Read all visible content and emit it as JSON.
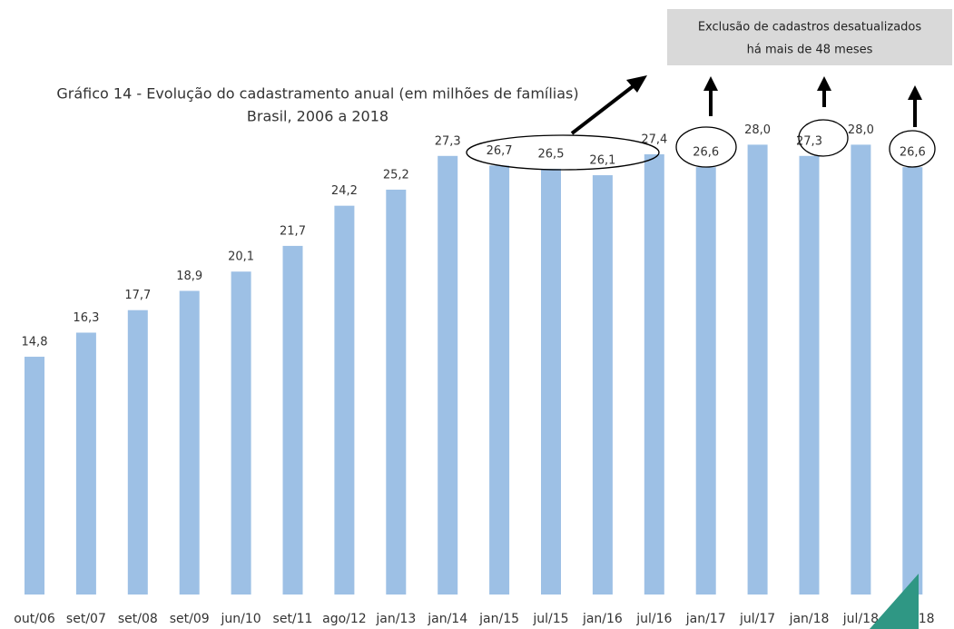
{
  "chart_data": {
    "type": "bar",
    "title": "Gráfico 14 - Evolução do cadastramento anual (em milhões de famílias)",
    "subtitle": "Brasil, 2006 a 2018",
    "annotation": [
      "Exclusão de cadastros desatualizados",
      "há mais de 48 meses"
    ],
    "categories": [
      "out/06",
      "set/07",
      "set/08",
      "set/09",
      "jun/10",
      "set/11",
      "ago/12",
      "jan/13",
      "jan/14",
      "jan/15",
      "jul/15",
      "jan/16",
      "jul/16",
      "jan/17",
      "jul/17",
      "jan/18",
      "jul/18",
      "ago/18"
    ],
    "values": [
      14.8,
      16.3,
      17.7,
      18.9,
      20.1,
      21.7,
      24.2,
      25.2,
      27.3,
      26.7,
      26.5,
      26.1,
      27.4,
      26.6,
      28.0,
      27.3,
      28.0,
      26.6
    ],
    "value_labels": [
      "14,8",
      "16,3",
      "17,7",
      "18,9",
      "20,1",
      "21,7",
      "24,2",
      "25,2",
      "27,3",
      "26,7",
      "26,5",
      "26,1",
      "27,4",
      "26,6",
      "28,0",
      "27,3",
      "28,0",
      "26,6"
    ],
    "color": "#9dc0e5"
  }
}
